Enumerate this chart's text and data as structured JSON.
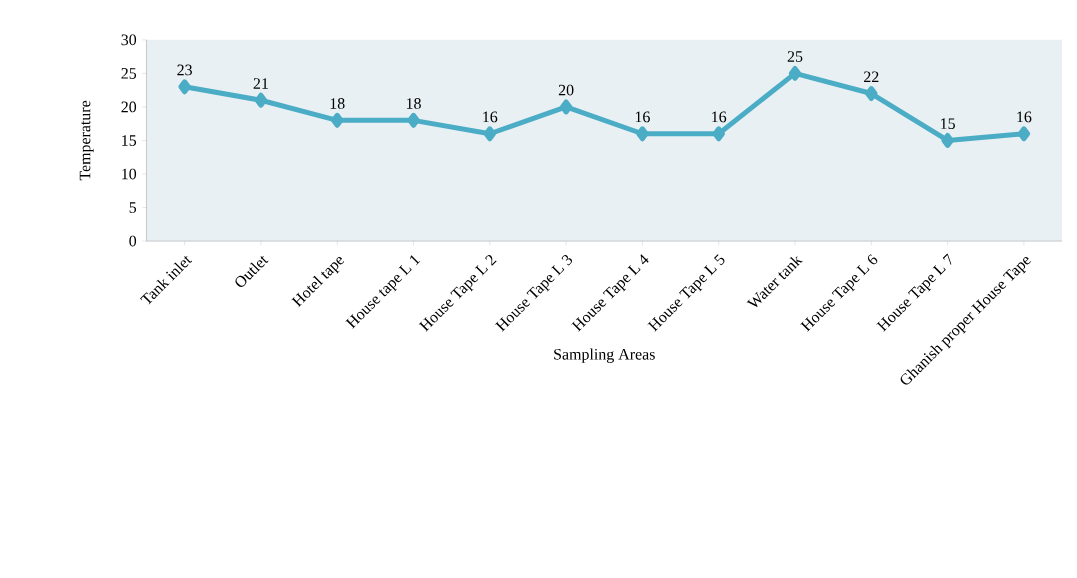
{
  "chart_data": {
    "type": "line",
    "xlabel": "Sampling Areas",
    "ylabel": "Temperature",
    "categories": [
      "Tank inlet",
      "Outlet",
      "Hotel tape",
      "House tape L 1",
      "House Tape L 2",
      "House Tape L 3",
      "House Tape L 4",
      "House Tape L 5",
      "Water tank",
      "House Tape L 6",
      "House Tape L 7",
      "Ghanish proper House Tape"
    ],
    "series": [
      {
        "color": "#4bacc6",
        "values": [
          23,
          21,
          18,
          18,
          16,
          20,
          16,
          16,
          25,
          22,
          15,
          16
        ]
      }
    ],
    "ylim": [
      0,
      30
    ],
    "yticks": [
      0,
      5,
      10,
      15,
      20,
      25,
      30
    ],
    "data_labels": true,
    "marker": "diamond",
    "line_style": "solid",
    "grid": false
  }
}
